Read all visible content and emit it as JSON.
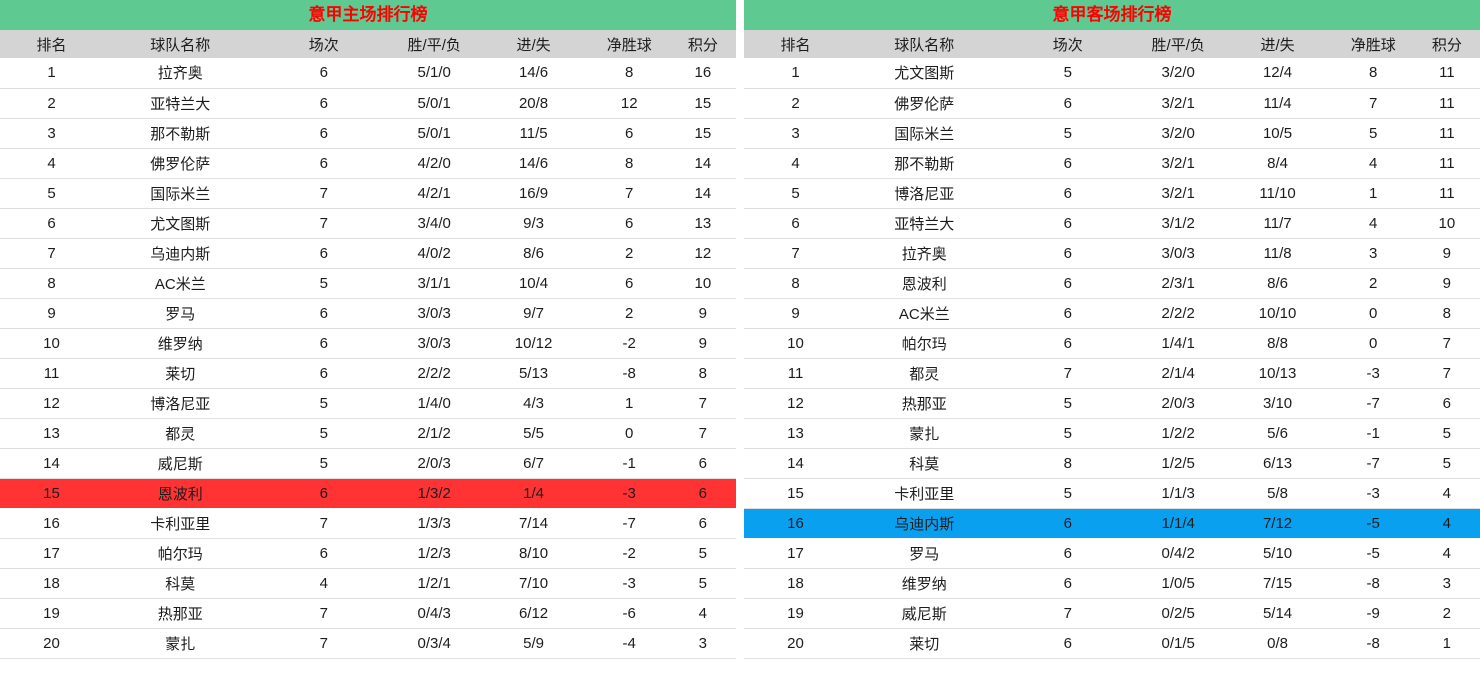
{
  "colors": {
    "title_bg": "#5fc992",
    "title_text": "#ff0000",
    "header_bg": "#d4d4d4",
    "row_border": "#dedede",
    "body_text": "#1c1c1c",
    "home_highlight": "#ff3333",
    "away_highlight": "#0aa0f0"
  },
  "chart_data": [
    {
      "type": "table",
      "title": "意甲主场排行榜",
      "columns": [
        "排名",
        "球队名称",
        "场次",
        "胜/平/负",
        "进/失",
        "净胜球",
        "积分"
      ],
      "highlighted_rank": 15,
      "highlight_color": "#ff3333",
      "rows": [
        [
          1,
          "拉齐奥",
          6,
          "5/1/0",
          "14/6",
          8,
          16
        ],
        [
          2,
          "亚特兰大",
          6,
          "5/0/1",
          "20/8",
          12,
          15
        ],
        [
          3,
          "那不勒斯",
          6,
          "5/0/1",
          "11/5",
          6,
          15
        ],
        [
          4,
          "佛罗伦萨",
          6,
          "4/2/0",
          "14/6",
          8,
          14
        ],
        [
          5,
          "国际米兰",
          7,
          "4/2/1",
          "16/9",
          7,
          14
        ],
        [
          6,
          "尤文图斯",
          7,
          "3/4/0",
          "9/3",
          6,
          13
        ],
        [
          7,
          "乌迪内斯",
          6,
          "4/0/2",
          "8/6",
          2,
          12
        ],
        [
          8,
          "AC米兰",
          5,
          "3/1/1",
          "10/4",
          6,
          10
        ],
        [
          9,
          "罗马",
          6,
          "3/0/3",
          "9/7",
          2,
          9
        ],
        [
          10,
          "维罗纳",
          6,
          "3/0/3",
          "10/12",
          -2,
          9
        ],
        [
          11,
          "莱切",
          6,
          "2/2/2",
          "5/13",
          -8,
          8
        ],
        [
          12,
          "博洛尼亚",
          5,
          "1/4/0",
          "4/3",
          1,
          7
        ],
        [
          13,
          "都灵",
          5,
          "2/1/2",
          "5/5",
          0,
          7
        ],
        [
          14,
          "威尼斯",
          5,
          "2/0/3",
          "6/7",
          -1,
          6
        ],
        [
          15,
          "恩波利",
          6,
          "1/3/2",
          "1/4",
          -3,
          6
        ],
        [
          16,
          "卡利亚里",
          7,
          "1/3/3",
          "7/14",
          -7,
          6
        ],
        [
          17,
          "帕尔玛",
          6,
          "1/2/3",
          "8/10",
          -2,
          5
        ],
        [
          18,
          "科莫",
          4,
          "1/2/1",
          "7/10",
          -3,
          5
        ],
        [
          19,
          "热那亚",
          7,
          "0/4/3",
          "6/12",
          -6,
          4
        ],
        [
          20,
          "蒙扎",
          7,
          "0/3/4",
          "5/9",
          -4,
          3
        ]
      ]
    },
    {
      "type": "table",
      "title": "意甲客场排行榜",
      "columns": [
        "排名",
        "球队名称",
        "场次",
        "胜/平/负",
        "进/失",
        "净胜球",
        "积分"
      ],
      "highlighted_rank": 16,
      "highlight_color": "#0aa0f0",
      "rows": [
        [
          1,
          "尤文图斯",
          5,
          "3/2/0",
          "12/4",
          8,
          11
        ],
        [
          2,
          "佛罗伦萨",
          6,
          "3/2/1",
          "11/4",
          7,
          11
        ],
        [
          3,
          "国际米兰",
          5,
          "3/2/0",
          "10/5",
          5,
          11
        ],
        [
          4,
          "那不勒斯",
          6,
          "3/2/1",
          "8/4",
          4,
          11
        ],
        [
          5,
          "博洛尼亚",
          6,
          "3/2/1",
          "11/10",
          1,
          11
        ],
        [
          6,
          "亚特兰大",
          6,
          "3/1/2",
          "11/7",
          4,
          10
        ],
        [
          7,
          "拉齐奥",
          6,
          "3/0/3",
          "11/8",
          3,
          9
        ],
        [
          8,
          "恩波利",
          6,
          "2/3/1",
          "8/6",
          2,
          9
        ],
        [
          9,
          "AC米兰",
          6,
          "2/2/2",
          "10/10",
          0,
          8
        ],
        [
          10,
          "帕尔玛",
          6,
          "1/4/1",
          "8/8",
          0,
          7
        ],
        [
          11,
          "都灵",
          7,
          "2/1/4",
          "10/13",
          -3,
          7
        ],
        [
          12,
          "热那亚",
          5,
          "2/0/3",
          "3/10",
          -7,
          6
        ],
        [
          13,
          "蒙扎",
          5,
          "1/2/2",
          "5/6",
          -1,
          5
        ],
        [
          14,
          "科莫",
          8,
          "1/2/5",
          "6/13",
          -7,
          5
        ],
        [
          15,
          "卡利亚里",
          5,
          "1/1/3",
          "5/8",
          -3,
          4
        ],
        [
          16,
          "乌迪内斯",
          6,
          "1/1/4",
          "7/12",
          -5,
          4
        ],
        [
          17,
          "罗马",
          6,
          "0/4/2",
          "5/10",
          -5,
          4
        ],
        [
          18,
          "维罗纳",
          6,
          "1/0/5",
          "7/15",
          -8,
          3
        ],
        [
          19,
          "威尼斯",
          7,
          "0/2/5",
          "5/14",
          -9,
          2
        ],
        [
          20,
          "莱切",
          6,
          "0/1/5",
          "0/8",
          -8,
          1
        ]
      ]
    }
  ]
}
